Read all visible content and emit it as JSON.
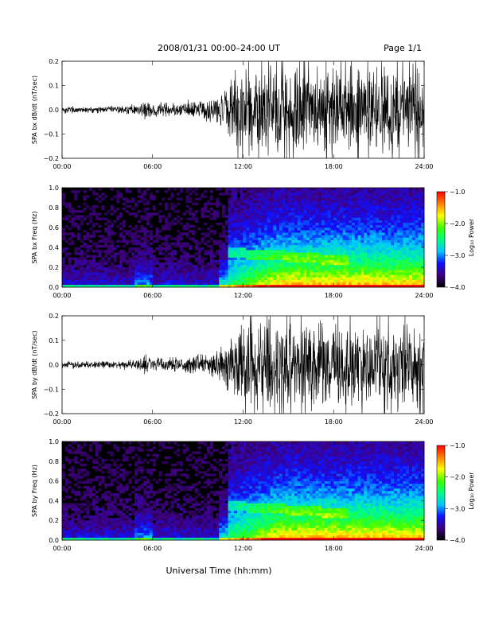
{
  "header": {
    "title": "2008/01/31  00:00–24:00 UT",
    "page": "Page 1/1"
  },
  "footer": {
    "xlabel": "Universal Time (hh:mm)"
  },
  "chart_data": [
    {
      "type": "line",
      "ylabel": "SPA bx dB/dt (nT/sec)",
      "xlim": [
        0,
        24
      ],
      "ylim": [
        -0.2,
        0.2
      ],
      "x_ticks": [
        "00:00",
        "06:00",
        "12:00",
        "18:00",
        "24:00"
      ],
      "y_ticks": [
        "0.2",
        "0.1",
        "0.0",
        "−0.1",
        "−0.2"
      ],
      "y_tick_values": [
        0.2,
        0.1,
        0.0,
        -0.1,
        -0.2
      ],
      "series_color": "#000000",
      "envelope": {
        "x_hours": [
          0,
          2,
          4,
          5.2,
          5.5,
          6,
          8,
          9.5,
          10.5,
          11,
          11.5,
          12,
          13,
          14,
          15,
          16,
          17,
          18,
          19,
          20,
          21,
          22,
          23,
          24
        ],
        "amplitude": [
          0.02,
          0.015,
          0.02,
          0.03,
          0.06,
          0.03,
          0.04,
          0.05,
          0.08,
          0.12,
          0.18,
          0.2,
          0.2,
          0.2,
          0.2,
          0.2,
          0.2,
          0.2,
          0.2,
          0.2,
          0.2,
          0.2,
          0.2,
          0.2
        ]
      }
    },
    {
      "type": "heatmap",
      "ylabel": "SPA bx Freq (Hz)",
      "xlim": [
        0,
        24
      ],
      "ylim": [
        0,
        1.0
      ],
      "x_ticks": [
        "00:00",
        "06:00",
        "12:00",
        "18:00",
        "24:00"
      ],
      "y_ticks": [
        "1.0",
        "0.8",
        "0.6",
        "0.4",
        "0.2",
        "0.0"
      ],
      "y_tick_values": [
        1.0,
        0.8,
        0.6,
        0.4,
        0.2,
        0.0
      ],
      "colorbar": {
        "label": "Log₁₀ Power",
        "range": [
          -4.0,
          -1.0
        ],
        "ticks": [
          "−1.0",
          "−2.0",
          "−3.0",
          "−4.0"
        ],
        "tick_values": [
          -1.0,
          -2.0,
          -3.0,
          -4.0
        ],
        "colors": [
          "#000000",
          "#400080",
          "#1010ff",
          "#00c8ff",
          "#00ff80",
          "#40ff00",
          "#ffff00",
          "#ff8000",
          "#ff0000"
        ]
      }
    },
    {
      "type": "line",
      "ylabel": "SPA by dB/dt (nT/sec)",
      "xlim": [
        0,
        24
      ],
      "ylim": [
        -0.2,
        0.2
      ],
      "x_ticks": [
        "00:00",
        "06:00",
        "12:00",
        "18:00",
        "24:00"
      ],
      "y_ticks": [
        "0.2",
        "0.1",
        "0.0",
        "−0.1",
        "−0.2"
      ],
      "y_tick_values": [
        0.2,
        0.1,
        0.0,
        -0.1,
        -0.2
      ],
      "series_color": "#000000",
      "envelope": {
        "x_hours": [
          0,
          2,
          4,
          5.2,
          5.5,
          6,
          8,
          9.5,
          10.5,
          11,
          11.5,
          12,
          13,
          14,
          15,
          16,
          17,
          18,
          19,
          20,
          21,
          22,
          23,
          24
        ],
        "amplitude": [
          0.02,
          0.015,
          0.02,
          0.03,
          0.06,
          0.03,
          0.04,
          0.05,
          0.08,
          0.12,
          0.18,
          0.2,
          0.2,
          0.2,
          0.2,
          0.2,
          0.2,
          0.2,
          0.2,
          0.2,
          0.2,
          0.2,
          0.2,
          0.2
        ]
      }
    },
    {
      "type": "heatmap",
      "ylabel": "SPA by Freq (Hz)",
      "xlim": [
        0,
        24
      ],
      "ylim": [
        0,
        1.0
      ],
      "x_ticks": [
        "00:00",
        "06:00",
        "12:00",
        "18:00",
        "24:00"
      ],
      "y_ticks": [
        "1.0",
        "0.8",
        "0.6",
        "0.4",
        "0.2",
        "0.0"
      ],
      "y_tick_values": [
        1.0,
        0.8,
        0.6,
        0.4,
        0.2,
        0.0
      ],
      "colorbar": {
        "label": "Log₁₀ Power",
        "range": [
          -4.0,
          -1.0
        ],
        "ticks": [
          "−1.0",
          "−2.0",
          "−3.0",
          "−4.0"
        ],
        "tick_values": [
          -1.0,
          -2.0,
          -3.0,
          -4.0
        ],
        "colors": [
          "#000000",
          "#400080",
          "#1010ff",
          "#00c8ff",
          "#00ff80",
          "#40ff00",
          "#ffff00",
          "#ff8000",
          "#ff0000"
        ]
      }
    }
  ]
}
